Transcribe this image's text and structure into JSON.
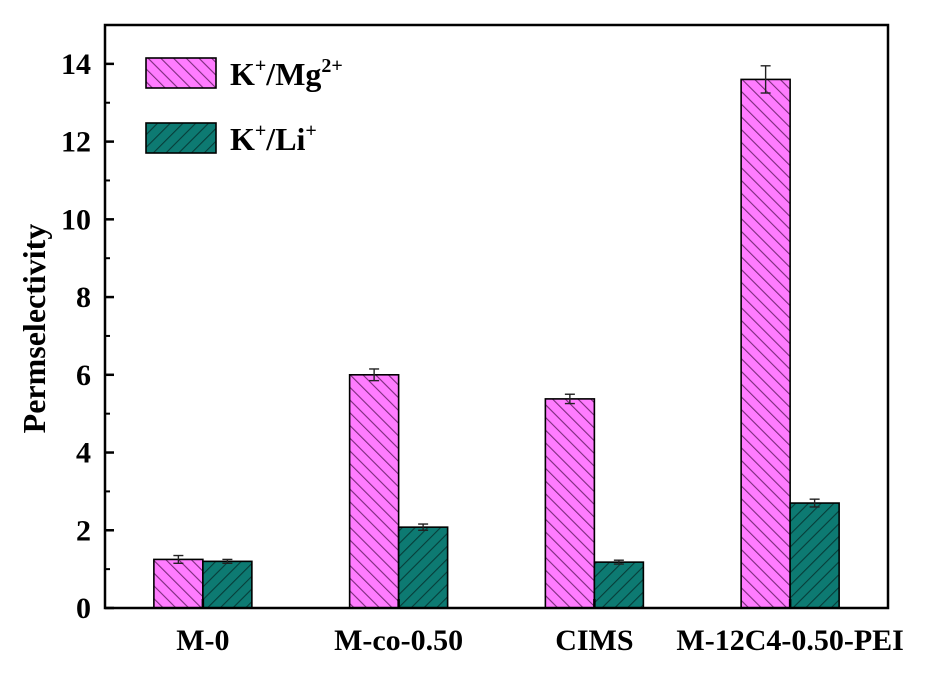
{
  "chart_data": {
    "type": "bar",
    "ylabel": "Permselectivity",
    "xlabel": "",
    "ylim": [
      0,
      15
    ],
    "yticks": [
      0,
      2,
      4,
      6,
      8,
      10,
      12,
      14
    ],
    "categories": [
      "M-0",
      "M-co-0.50",
      "CIMS",
      "M-12C4-0.50-PEI"
    ],
    "series": [
      {
        "name": "K+/Mg2+",
        "name_parts": [
          "K",
          "+",
          "/Mg",
          "2+"
        ],
        "color": "#ff7cff",
        "hatch_color": "#7a2a7a",
        "values": [
          1.25,
          6.0,
          5.38,
          13.6
        ],
        "errors": [
          0.1,
          0.15,
          0.12,
          0.35
        ]
      },
      {
        "name": "K+/Li+",
        "name_parts": [
          "K",
          "+",
          "/Li",
          "+"
        ],
        "color": "#0d7a72",
        "hatch_color": "#073d39",
        "values": [
          1.2,
          2.08,
          1.18,
          2.7
        ],
        "errors": [
          0.05,
          0.08,
          0.05,
          0.1
        ]
      }
    ],
    "grid": false,
    "legend_position": "top-left"
  }
}
